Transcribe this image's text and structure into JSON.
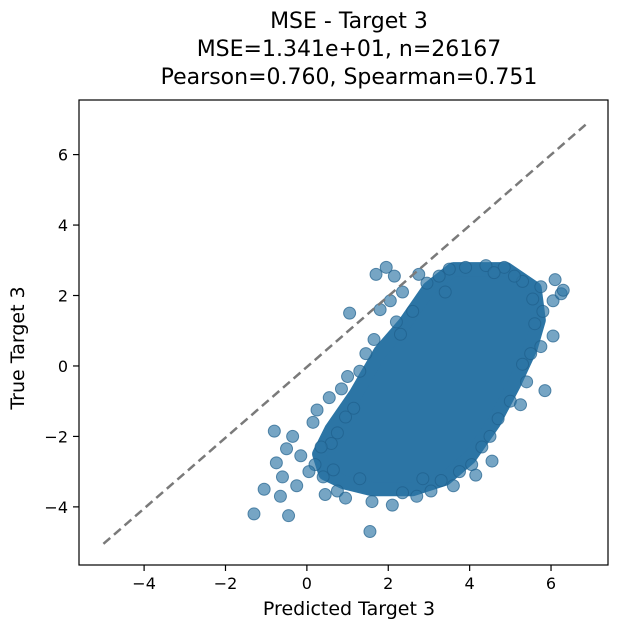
{
  "chart_data": {
    "type": "scatter",
    "title_lines": [
      "MSE - Target 3",
      "MSE=1.341e+01, n=26167",
      "Pearson=0.760, Spearman=0.751"
    ],
    "xlabel": "Predicted Target 3",
    "ylabel": "True Target 3",
    "xlim": [
      -5.6,
      7.4
    ],
    "ylim": [
      -5.65,
      7.55
    ],
    "xticks": [
      -4,
      -2,
      0,
      2,
      4,
      6
    ],
    "yticks": [
      -4,
      -2,
      0,
      2,
      4,
      6
    ],
    "xtick_labels": [
      "−4",
      "−2",
      "0",
      "2",
      "4",
      "6"
    ],
    "ytick_labels": [
      "−4",
      "−2",
      "0",
      "2",
      "4",
      "6"
    ],
    "grid": false,
    "point_color": "#2c75a5",
    "reference_line": {
      "x": [
        -5.0,
        6.85
      ],
      "y": [
        -5.05,
        6.85
      ],
      "style": "dashed",
      "color": "#7a7a7a"
    },
    "dense_region": {
      "polygon": [
        [
          0.9,
          -3.3
        ],
        [
          1.6,
          -3.5
        ],
        [
          2.6,
          -3.5
        ],
        [
          3.4,
          -3.2
        ],
        [
          4.0,
          -2.6
        ],
        [
          4.6,
          -1.6
        ],
        [
          5.1,
          -0.5
        ],
        [
          5.5,
          0.5
        ],
        [
          5.7,
          1.3
        ],
        [
          5.6,
          2.2
        ],
        [
          4.9,
          2.75
        ],
        [
          3.6,
          2.75
        ],
        [
          3.0,
          2.2
        ],
        [
          2.4,
          1.2
        ],
        [
          1.8,
          0.4
        ],
        [
          1.2,
          -0.8
        ],
        [
          0.6,
          -1.8
        ],
        [
          0.3,
          -2.5
        ],
        [
          0.45,
          -3.05
        ]
      ]
    },
    "points": [
      [
        -1.3,
        -4.2
      ],
      [
        -1.05,
        -3.5
      ],
      [
        -0.65,
        -3.7
      ],
      [
        -0.45,
        -4.25
      ],
      [
        -0.25,
        -3.4
      ],
      [
        -0.6,
        -3.15
      ],
      [
        -0.75,
        -2.75
      ],
      [
        -0.5,
        -2.35
      ],
      [
        -0.35,
        -2.0
      ],
      [
        -0.8,
        -1.85
      ],
      [
        -0.15,
        -2.55
      ],
      [
        0.2,
        -2.8
      ],
      [
        0.05,
        -3.0
      ],
      [
        0.4,
        -3.15
      ],
      [
        0.45,
        -3.65
      ],
      [
        0.75,
        -3.55
      ],
      [
        0.95,
        -3.75
      ],
      [
        0.65,
        -2.95
      ],
      [
        0.15,
        -1.6
      ],
      [
        0.25,
        -1.25
      ],
      [
        0.55,
        -0.9
      ],
      [
        0.85,
        -0.65
      ],
      [
        1.0,
        -0.3
      ],
      [
        1.3,
        -0.15
      ],
      [
        1.15,
        -1.2
      ],
      [
        0.95,
        -1.45
      ],
      [
        0.75,
        -1.9
      ],
      [
        1.05,
        1.5
      ],
      [
        1.7,
        2.6
      ],
      [
        1.95,
        2.8
      ],
      [
        2.15,
        2.55
      ],
      [
        2.35,
        2.1
      ],
      [
        2.05,
        1.85
      ],
      [
        1.8,
        1.6
      ],
      [
        2.2,
        1.25
      ],
      [
        1.65,
        0.75
      ],
      [
        1.45,
        0.35
      ],
      [
        1.6,
        -3.85
      ],
      [
        1.55,
        -4.7
      ],
      [
        2.1,
        -3.95
      ],
      [
        2.35,
        -3.6
      ],
      [
        2.7,
        -3.7
      ],
      [
        3.05,
        -3.55
      ],
      [
        3.3,
        -3.25
      ],
      [
        3.6,
        -3.4
      ],
      [
        3.75,
        -3.0
      ],
      [
        4.05,
        -2.8
      ],
      [
        4.3,
        -2.3
      ],
      [
        4.5,
        -2.0
      ],
      [
        4.7,
        -1.5
      ],
      [
        5.0,
        -1.0
      ],
      [
        5.4,
        -0.45
      ],
      [
        5.5,
        0.35
      ],
      [
        5.75,
        0.55
      ],
      [
        5.6,
        1.2
      ],
      [
        5.8,
        1.55
      ],
      [
        6.05,
        1.85
      ],
      [
        6.25,
        2.05
      ],
      [
        6.3,
        2.15
      ],
      [
        6.1,
        2.45
      ],
      [
        5.75,
        2.25
      ],
      [
        5.3,
        2.4
      ],
      [
        4.85,
        2.8
      ],
      [
        4.4,
        2.85
      ],
      [
        3.9,
        2.8
      ],
      [
        3.5,
        2.75
      ],
      [
        3.25,
        2.55
      ],
      [
        2.75,
        2.6
      ],
      [
        2.95,
        2.35
      ],
      [
        6.05,
        0.85
      ],
      [
        5.85,
        -0.7
      ],
      [
        5.25,
        -1.1
      ],
      [
        4.55,
        -2.7
      ],
      [
        4.15,
        -3.1
      ],
      [
        2.85,
        -3.2
      ],
      [
        3.4,
        2.1
      ],
      [
        4.6,
        2.65
      ],
      [
        5.1,
        2.55
      ],
      [
        5.55,
        1.9
      ],
      [
        1.3,
        -3.2
      ],
      [
        0.6,
        -2.2
      ],
      [
        0.35,
        -2.3
      ],
      [
        2.6,
        1.55
      ],
      [
        2.3,
        0.9
      ],
      [
        5.3,
        0.05
      ]
    ]
  }
}
